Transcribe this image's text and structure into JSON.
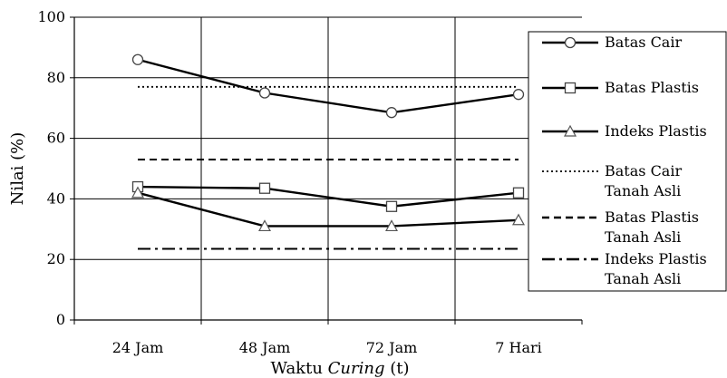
{
  "chart_data": {
    "type": "line",
    "title": "",
    "xlabel_prefix": "Waktu ",
    "xlabel_italic": "Curing",
    "xlabel_suffix": " (t)",
    "ylabel": "Nilai (%)",
    "ylim": [
      0,
      100
    ],
    "yticks": [
      0,
      20,
      40,
      60,
      80,
      100
    ],
    "ytick_labels": [
      "0",
      "20",
      "40",
      "60",
      "80",
      "100"
    ],
    "grid": true,
    "legend_position": "right",
    "categories": [
      "24 Jam",
      "48 Jam",
      "72 Jam",
      "7 Hari"
    ],
    "series": [
      {
        "name": "Batas Cair",
        "values": [
          86,
          75,
          68.5,
          74.5
        ],
        "marker": "circle",
        "line_style": "solid",
        "color": "#000000"
      },
      {
        "name": "Batas Plastis",
        "values": [
          44,
          43.5,
          37.5,
          42
        ],
        "marker": "square",
        "line_style": "solid",
        "color": "#000000"
      },
      {
        "name": "Indeks Plastis",
        "values": [
          42,
          31,
          31,
          33
        ],
        "marker": "triangle",
        "line_style": "solid",
        "color": "#000000"
      },
      {
        "name": "Batas Cair Tanah Asli",
        "name_lines": [
          "Batas Cair",
          "Tanah Asli"
        ],
        "values": [
          77,
          77,
          77,
          77
        ],
        "marker": "none",
        "line_style": "dotted",
        "color": "#000000"
      },
      {
        "name": "Batas Plastis Tanah Asli",
        "name_lines": [
          "Batas Plastis",
          "Tanah Asli"
        ],
        "values": [
          53,
          53,
          53,
          53
        ],
        "marker": "none",
        "line_style": "dashed",
        "color": "#000000"
      },
      {
        "name": "Indeks Plastis Tanah Asli",
        "name_lines": [
          "Indeks Plastis",
          "Tanah Asli"
        ],
        "values": [
          23.5,
          23.5,
          23.5,
          23.5
        ],
        "marker": "none",
        "line_style": "dashdot",
        "color": "#000000"
      }
    ]
  }
}
